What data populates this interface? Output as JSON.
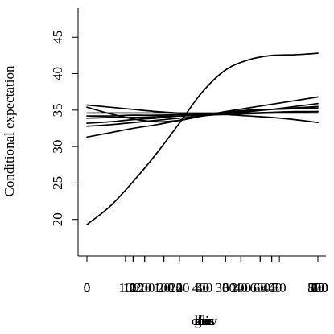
{
  "chart_data": {
    "type": "line",
    "title": "",
    "ylabel": "Conditional expectation",
    "xlabel_overlaps": [
      "lbis",
      "coev",
      "rbis",
      "ecc",
      "fla",
      "hi",
      "gen"
    ],
    "ylim": [
      15,
      49
    ],
    "y_ticks": [
      20,
      25,
      30,
      35,
      40,
      45
    ],
    "x_tick_groups": [
      {
        "ticks": [
          0,
          1,
          2,
          3,
          4,
          5
        ],
        "labels": [
          "0",
          "1",
          "2",
          "3",
          "4",
          "5"
        ]
      },
      {
        "ticks": [
          0,
          10,
          20,
          30,
          40,
          50,
          60
        ],
        "labels": [
          "0",
          "10",
          "20",
          "30",
          "40",
          "50",
          "60"
        ]
      },
      {
        "ticks": [
          0,
          2,
          4,
          6,
          8,
          10
        ],
        "labels": [
          "0",
          "2",
          "4",
          "6",
          "8",
          "10"
        ]
      },
      {
        "ticks": [
          0,
          20,
          40,
          60,
          80
        ],
        "labels": [
          "0",
          "20",
          "40",
          "60",
          "80"
        ]
      },
      {
        "ticks": [
          0,
          200,
          400,
          600,
          800
        ],
        "labels": [
          "0",
          "200",
          "400",
          "600",
          "800"
        ]
      },
      {
        "ticks": [
          0,
          100,
          200,
          300,
          400,
          500
        ],
        "labels": [
          "0",
          "100",
          "200",
          "300",
          "400",
          "500"
        ]
      },
      {
        "ticks": [
          0,
          100,
          200,
          300
        ],
        "labels": [
          "0",
          "100",
          "200",
          "300"
        ]
      }
    ],
    "x_norm": [
      0,
      0.1,
      0.2,
      0.3,
      0.4,
      0.5,
      0.6,
      0.7,
      0.8,
      0.9,
      1.0
    ],
    "series": [
      {
        "values": [
          19.3,
          21.8,
          25.2,
          29.0,
          33.2,
          37.5,
          40.5,
          41.9,
          42.5,
          42.6,
          42.8
        ]
      },
      {
        "values": [
          35.7,
          35.4,
          35.1,
          34.8,
          34.6,
          34.5,
          34.4,
          34.2,
          34.0,
          33.7,
          33.3
        ]
      },
      {
        "values": [
          31.3,
          31.9,
          32.5,
          33.0,
          33.6,
          34.2,
          34.8,
          35.3,
          35.8,
          36.3,
          36.8
        ]
      },
      {
        "values": [
          32.8,
          33.0,
          33.3,
          33.6,
          33.9,
          34.2,
          34.5,
          34.8,
          35.1,
          35.5,
          35.9
        ]
      },
      {
        "values": [
          35.4,
          34.5,
          33.8,
          33.4,
          33.6,
          34.2,
          34.7,
          35.0,
          35.1,
          35.2,
          35.3
        ]
      },
      {
        "values": [
          34.6,
          34.6,
          34.6,
          34.6,
          34.6,
          34.6,
          34.6,
          34.6,
          34.6,
          34.6,
          34.6
        ]
      },
      {
        "values": [
          33.2,
          33.4,
          33.7,
          33.9,
          34.2,
          34.4,
          34.7,
          34.9,
          35.1,
          35.3,
          35.5
        ]
      },
      {
        "values": [
          34.2,
          34.2,
          34.3,
          34.3,
          34.4,
          34.5,
          34.6,
          34.6,
          34.7,
          34.8,
          34.8
        ]
      },
      {
        "values": [
          33.9,
          34.0,
          34.0,
          34.1,
          34.2,
          34.3,
          34.4,
          34.5,
          34.6,
          34.7,
          34.8
        ]
      }
    ],
    "grid": false,
    "legend": "none"
  }
}
